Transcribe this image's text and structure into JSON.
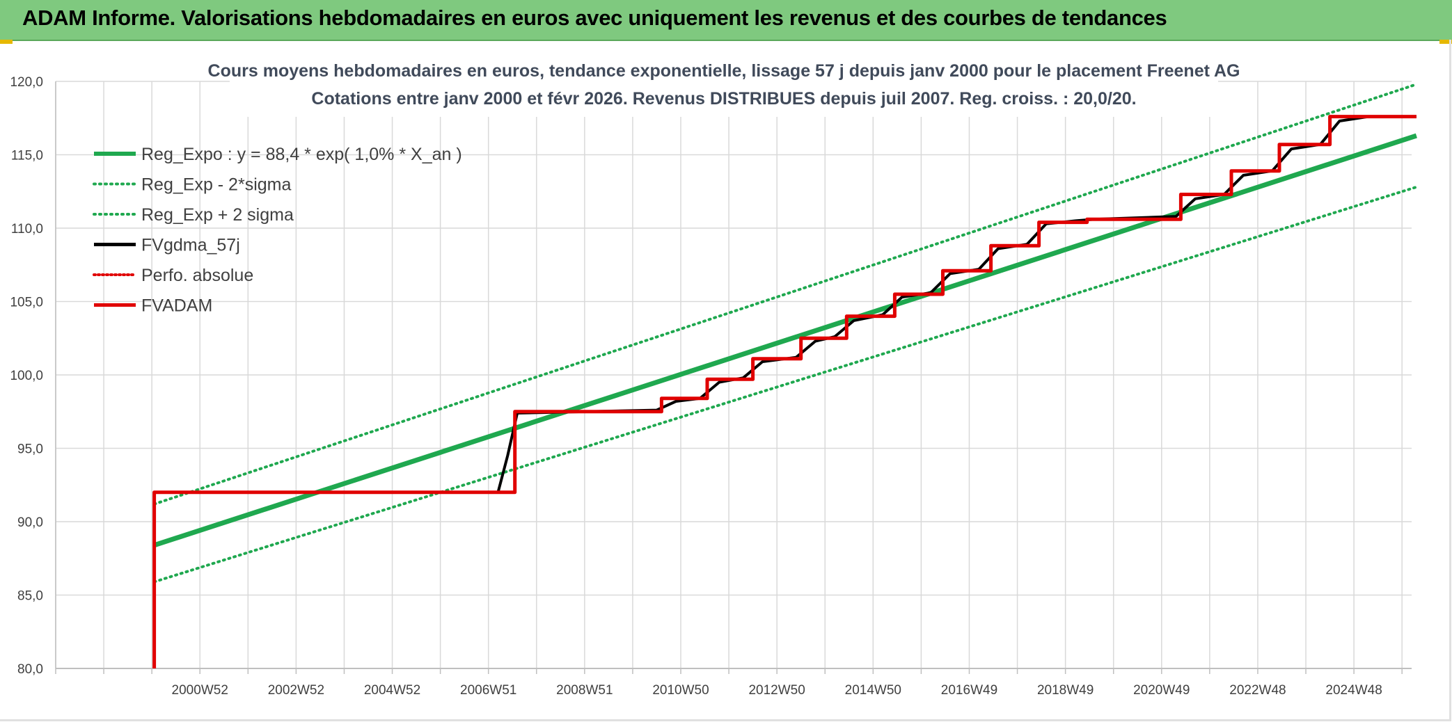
{
  "banner": {
    "title": "ADAM Informe. Valorisations hebdomadaires en euros avec uniquement les revenus et des courbes de tendances"
  },
  "colors": {
    "banner_bg": "#7fc97f",
    "trend": "#1fa84f",
    "band": "#1fa84f",
    "fvgdma": "#000000",
    "perfo": "#e00000",
    "fvadam": "#e00000",
    "accent": "#e6b800"
  },
  "chart_data": {
    "type": "line",
    "title": [
      "Cours moyens hebdomadaires en euros, tendance exponentielle, lissage 57 j depuis janv 2000 pour le placement Freenet AG",
      "Cotations entre janv 2000 et févr 2026. Revenus DISTRIBUES depuis juil 2007. Reg. croiss. : 20,0/20."
    ],
    "ylim": [
      80,
      120
    ],
    "yticks": [
      "80,0",
      "85,0",
      "90,0",
      "95,0",
      "100,0",
      "105,0",
      "110,0",
      "115,0",
      "120,0"
    ],
    "yticks_values": [
      80,
      85,
      90,
      95,
      100,
      105,
      110,
      115,
      120
    ],
    "xlim": [
      1998,
      2026.2
    ],
    "xticks": [
      "2000W52",
      "2002W52",
      "2004W52",
      "2006W51",
      "2008W51",
      "2010W50",
      "2012W50",
      "2014W50",
      "2016W49",
      "2018W49",
      "2020W49",
      "2022W48",
      "2024W48"
    ],
    "xticks_values": [
      2001,
      2003,
      2005,
      2007,
      2009,
      2011,
      2013,
      2015,
      2017,
      2019,
      2021,
      2023,
      2025
    ],
    "grid": true,
    "legend_position": "top-left",
    "series": [
      {
        "name": "Reg_Expo : y = 88,4 * exp( 1,0% *  X_an )",
        "style": "solid-thick",
        "x": [
          2000.05,
          2026.3
        ],
        "y": [
          88.4,
          116.3
        ]
      },
      {
        "name": "Reg_Exp - 2*sigma",
        "style": "dotted",
        "x": [
          2000.05,
          2026.3
        ],
        "y": [
          85.9,
          112.8
        ]
      },
      {
        "name": "Reg_Exp + 2 sigma",
        "style": "dotted",
        "x": [
          2000.05,
          2026.3
        ],
        "y": [
          91.2,
          119.8
        ]
      },
      {
        "name": "FVgdma_57j",
        "style": "solid",
        "x": [
          2000.05,
          2007.2,
          2007.4,
          2007.6,
          2010.5,
          2010.9,
          2011.4,
          2011.8,
          2012.3,
          2012.7,
          2013.4,
          2013.8,
          2014.2,
          2014.6,
          2015.2,
          2015.6,
          2016.2,
          2016.6,
          2017.2,
          2017.6,
          2018.2,
          2018.6,
          2019.2,
          2019.6,
          2021.3,
          2021.7,
          2022.3,
          2022.7,
          2023.3,
          2023.7,
          2024.3,
          2024.7,
          2025.3,
          2025.7,
          2026.3
        ],
        "y": [
          92.0,
          92.0,
          94.5,
          97.4,
          97.6,
          98.2,
          98.4,
          99.5,
          99.8,
          100.9,
          101.2,
          102.3,
          102.6,
          103.7,
          104.1,
          105.3,
          105.6,
          106.9,
          107.2,
          108.6,
          108.9,
          110.3,
          110.5,
          110.6,
          110.8,
          112.0,
          112.3,
          113.6,
          113.9,
          115.4,
          115.7,
          117.3,
          117.6,
          117.6,
          117.6
        ]
      },
      {
        "name": "Perfo. absolue",
        "style": "dotted",
        "x": [],
        "y": []
      },
      {
        "name": "FVADAM",
        "style": "step",
        "x": [
          2000.05,
          2000.05,
          2007.55,
          2007.55,
          2010.6,
          2010.6,
          2011.55,
          2011.55,
          2012.5,
          2012.5,
          2013.5,
          2013.5,
          2014.45,
          2014.45,
          2015.45,
          2015.45,
          2016.45,
          2016.45,
          2017.45,
          2017.45,
          2018.45,
          2018.45,
          2019.45,
          2019.45,
          2021.4,
          2021.4,
          2022.45,
          2022.45,
          2023.45,
          2023.45,
          2024.5,
          2024.5,
          2025.5,
          2025.5,
          2026.3
        ],
        "y": [
          80.0,
          92.0,
          92.0,
          97.5,
          97.5,
          98.4,
          98.4,
          99.7,
          99.7,
          101.1,
          101.1,
          102.5,
          102.5,
          104.0,
          104.0,
          105.5,
          105.5,
          107.1,
          107.1,
          108.8,
          108.8,
          110.4,
          110.4,
          110.6,
          110.6,
          112.3,
          112.3,
          113.9,
          113.9,
          115.7,
          115.7,
          117.6,
          117.6,
          117.6,
          117.6
        ]
      }
    ]
  }
}
